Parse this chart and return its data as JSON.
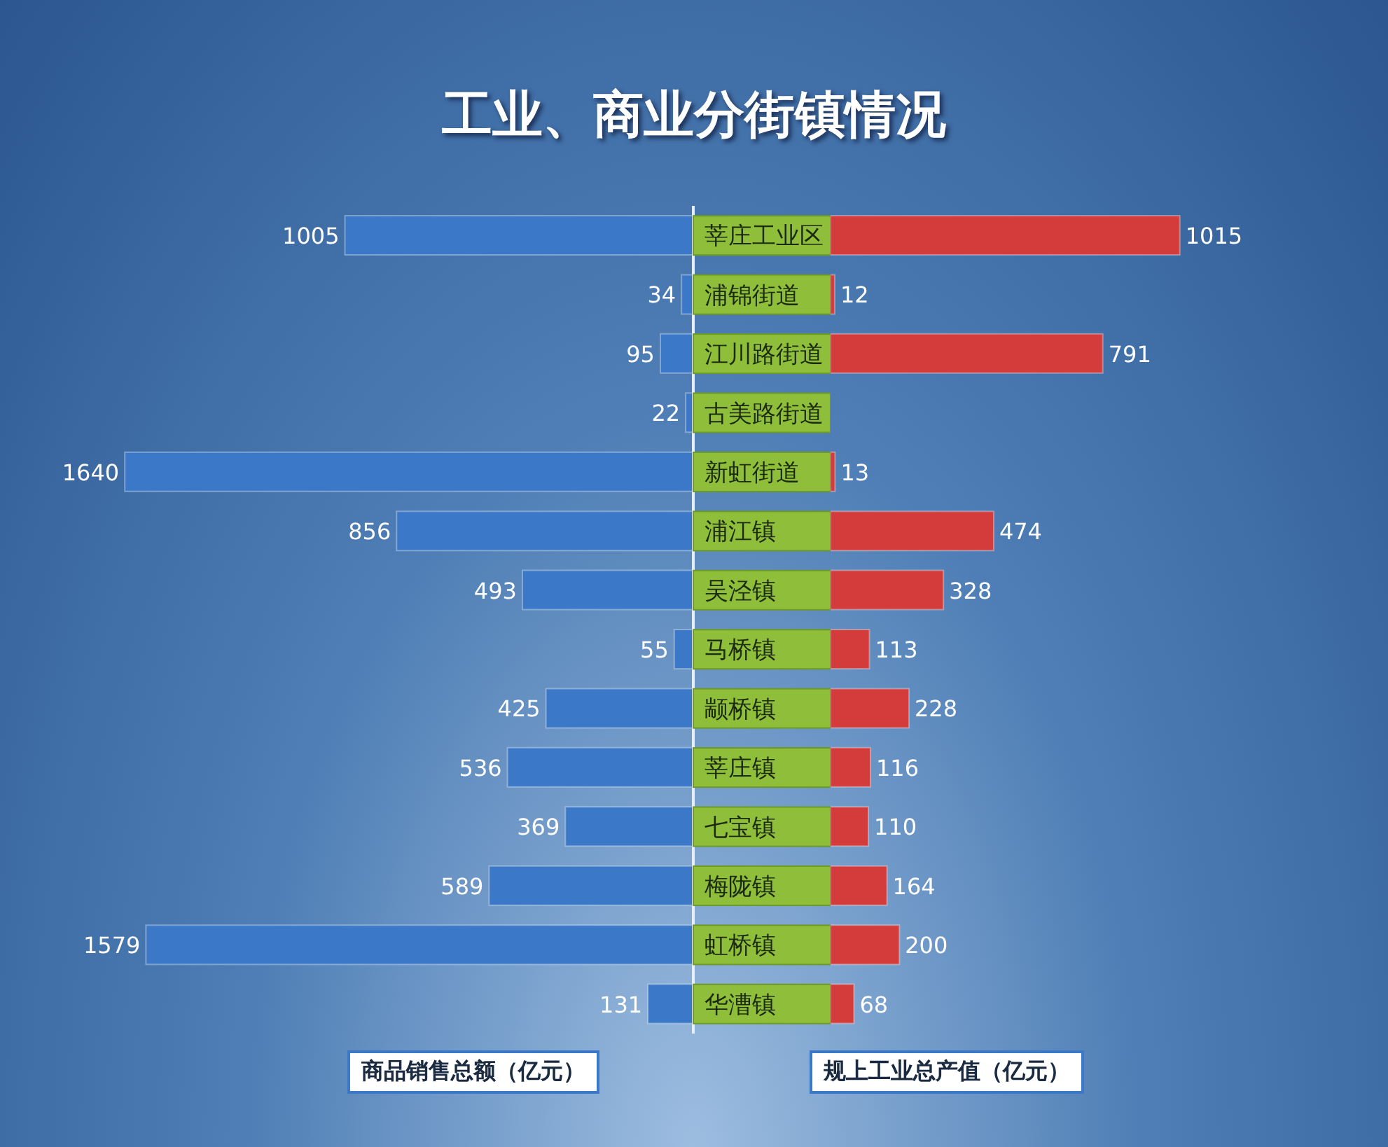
{
  "chart_data": [
    {
      "type": "bar",
      "orientation": "horizontal",
      "title": "工业、商业分街镇情况",
      "xlabel": "商品销售总额（亿元）",
      "categories": [
        "莘庄工业区",
        "浦锦街道",
        "江川路街道",
        "古美路街道",
        "新虹街道",
        "浦江镇",
        "吴泾镇",
        "马桥镇",
        "颛桥镇",
        "莘庄镇",
        "七宝镇",
        "梅陇镇",
        "虹桥镇",
        "华漕镇"
      ],
      "values": [
        1005,
        34,
        95,
        22,
        1640,
        856,
        493,
        55,
        425,
        536,
        369,
        589,
        1579,
        131
      ],
      "color": "#3b78c8",
      "xlim": [
        2000,
        0
      ],
      "tick_labels": "y",
      "data_labels": true
    },
    {
      "type": "bar",
      "orientation": "horizontal",
      "xlabel": "规上工业总产值（亿元）",
      "categories": [
        null,
        null,
        null,
        null,
        null,
        null,
        null,
        null,
        null,
        null,
        null,
        null,
        null,
        null
      ],
      "values": [
        1015,
        12,
        791,
        null,
        13,
        474,
        328,
        113,
        228,
        116,
        110,
        164,
        200,
        68
      ],
      "color": "#d43c3c",
      "xlim": [
        0,
        1620
      ],
      "tick_labels": false,
      "data_labels": true
    }
  ]
}
